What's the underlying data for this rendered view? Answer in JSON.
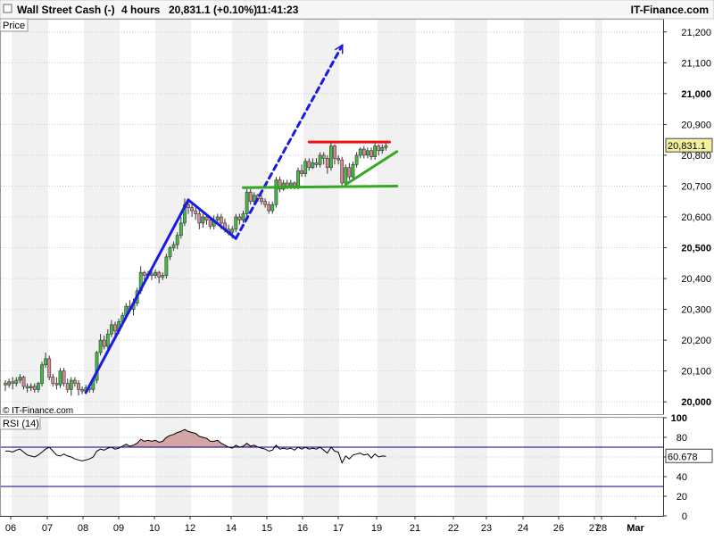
{
  "header": {
    "instrument": "Wall Street Cash (-)",
    "timeframe": "4 hours",
    "quote": "20,831.1 (+0.10%)",
    "time": "11:41:23",
    "brand": "IT-Finance.com"
  },
  "price_panel": {
    "label": "Price",
    "watermark": "© IT-Finance.com",
    "last_price_label": "20,831.1"
  },
  "rsi_panel": {
    "label": "RSI (14)",
    "last_value_label": "60.678"
  },
  "colors": {
    "up_candle": "#44bb44",
    "down_candle": "#d98a96",
    "trend_blue": "#1a1ae6",
    "support_green": "#33aa22",
    "resistance_red": "#ee1111",
    "rsi_line": "#000000",
    "rsi_fill": "#d4a5a5",
    "level_line": "#000080"
  },
  "chart_data": [
    {
      "type": "candlestick",
      "title": "Wall Street Cash (-)",
      "ylabel": "Price",
      "x_tick_labels": [
        "06",
        "07",
        "08",
        "09",
        "10",
        "12",
        "14",
        "15",
        "16",
        "17",
        "19",
        "21",
        "22",
        "23",
        "24",
        "26",
        "27",
        "28",
        "Mar"
      ],
      "y_ticks": [
        20000,
        20100,
        20200,
        20300,
        20400,
        20500,
        20600,
        20700,
        20800,
        20900,
        21000,
        21100,
        21200
      ],
      "ylim": [
        19960,
        21240
      ],
      "last_price": 20831.1,
      "candles": [
        [
          20060,
          20055,
          20035,
          20070
        ],
        [
          20055,
          20065,
          20045,
          20075
        ],
        [
          20065,
          20060,
          20040,
          20080
        ],
        [
          20060,
          20070,
          20050,
          20080
        ],
        [
          20070,
          20080,
          20060,
          20090
        ],
        [
          20080,
          20050,
          20040,
          20085
        ],
        [
          20050,
          20045,
          20030,
          20060
        ],
        [
          20045,
          20050,
          20035,
          20060
        ],
        [
          20050,
          20040,
          20030,
          20060
        ],
        [
          20040,
          20060,
          20030,
          20065
        ],
        [
          20060,
          20120,
          20050,
          20130
        ],
        [
          20120,
          20140,
          20110,
          20160
        ],
        [
          20140,
          20080,
          20070,
          20150
        ],
        [
          20080,
          20060,
          20050,
          20090
        ],
        [
          20060,
          20055,
          20040,
          20080
        ],
        [
          20055,
          20100,
          20045,
          20110
        ],
        [
          20100,
          20060,
          20050,
          20110
        ],
        [
          20060,
          20040,
          20030,
          20075
        ],
        [
          20040,
          20070,
          20020,
          20080
        ],
        [
          20070,
          20060,
          20050,
          20080
        ],
        [
          20060,
          20040,
          20020,
          20070
        ],
        [
          20040,
          20035,
          20025,
          20050
        ],
        [
          20035,
          20045,
          20025,
          20055
        ],
        [
          20045,
          20040,
          20030,
          20055
        ],
        [
          20040,
          20070,
          20030,
          20080
        ],
        [
          20070,
          20160,
          20060,
          20165
        ],
        [
          20160,
          20200,
          20150,
          20220
        ],
        [
          20200,
          20180,
          20170,
          20215
        ],
        [
          20180,
          20220,
          20170,
          20235
        ],
        [
          20220,
          20250,
          20210,
          20265
        ],
        [
          20250,
          20230,
          20200,
          20260
        ],
        [
          20230,
          20260,
          20220,
          20270
        ],
        [
          20260,
          20280,
          20250,
          20290
        ],
        [
          20280,
          20310,
          20270,
          20320
        ],
        [
          20310,
          20300,
          20290,
          20330
        ],
        [
          20300,
          20320,
          20280,
          20335
        ],
        [
          20320,
          20360,
          20310,
          20370
        ],
        [
          20360,
          20420,
          20350,
          20440
        ],
        [
          20420,
          20410,
          20390,
          20425
        ],
        [
          20410,
          20415,
          20400,
          20425
        ],
        [
          20415,
          20410,
          20395,
          20425
        ],
        [
          20410,
          20420,
          20400,
          20430
        ],
        [
          20420,
          20405,
          20385,
          20425
        ],
        [
          20405,
          20410,
          20395,
          20420
        ],
        [
          20410,
          20470,
          20400,
          20480
        ],
        [
          20470,
          20500,
          20460,
          20505
        ],
        [
          20500,
          20510,
          20490,
          20520
        ],
        [
          20510,
          20540,
          20495,
          20550
        ],
        [
          20540,
          20580,
          20530,
          20600
        ],
        [
          20580,
          20640,
          20570,
          20660
        ],
        [
          20640,
          20630,
          20610,
          20650
        ],
        [
          20630,
          20620,
          20600,
          20640
        ],
        [
          20620,
          20610,
          20590,
          20635
        ],
        [
          20610,
          20580,
          20560,
          20630
        ],
        [
          20580,
          20600,
          20565,
          20610
        ],
        [
          20600,
          20590,
          20575,
          20610
        ],
        [
          20590,
          20570,
          20560,
          20600
        ],
        [
          20570,
          20590,
          20560,
          20605
        ],
        [
          20590,
          20600,
          20580,
          20610
        ],
        [
          20600,
          20580,
          20560,
          20610
        ],
        [
          20580,
          20560,
          20550,
          20595
        ],
        [
          20560,
          20550,
          20540,
          20575
        ],
        [
          20550,
          20560,
          20530,
          20570
        ],
        [
          20560,
          20600,
          20550,
          20610
        ],
        [
          20600,
          20590,
          20575,
          20610
        ],
        [
          20590,
          20610,
          20580,
          20620
        ],
        [
          20610,
          20680,
          20600,
          20690
        ],
        [
          20680,
          20650,
          20640,
          20690
        ],
        [
          20650,
          20670,
          20640,
          20680
        ],
        [
          20670,
          20660,
          20650,
          20675
        ],
        [
          20660,
          20650,
          20640,
          20670
        ],
        [
          20650,
          20640,
          20630,
          20660
        ],
        [
          20640,
          20620,
          20610,
          20650
        ],
        [
          20620,
          20640,
          20610,
          20650
        ],
        [
          20640,
          20720,
          20630,
          20730
        ],
        [
          20720,
          20690,
          20680,
          20730
        ],
        [
          20690,
          20710,
          20685,
          20720
        ],
        [
          20710,
          20700,
          20690,
          20720
        ],
        [
          20700,
          20710,
          20690,
          20720
        ],
        [
          20710,
          20700,
          20690,
          20715
        ],
        [
          20700,
          20750,
          20690,
          20760
        ],
        [
          20750,
          20740,
          20730,
          20770
        ],
        [
          20740,
          20780,
          20730,
          20790
        ],
        [
          20780,
          20760,
          20750,
          20790
        ],
        [
          20760,
          20775,
          20755,
          20790
        ],
        [
          20775,
          20770,
          20760,
          20790
        ],
        [
          20770,
          20800,
          20760,
          20810
        ],
        [
          20800,
          20790,
          20770,
          20810
        ],
        [
          20790,
          20760,
          20740,
          20800
        ],
        [
          20760,
          20830,
          20750,
          20840
        ],
        [
          20830,
          20790,
          20770,
          20835
        ],
        [
          20790,
          20785,
          20770,
          20800
        ],
        [
          20785,
          20710,
          20700,
          20795
        ],
        [
          20710,
          20760,
          20700,
          20770
        ],
        [
          20760,
          20730,
          20720,
          20775
        ],
        [
          20730,
          20770,
          20720,
          20780
        ],
        [
          20770,
          20800,
          20760,
          20810
        ],
        [
          20800,
          20820,
          20790,
          20825
        ],
        [
          20820,
          20800,
          20790,
          20830
        ],
        [
          20800,
          20815,
          20790,
          20825
        ],
        [
          20815,
          20795,
          20785,
          20825
        ],
        [
          20795,
          20830,
          20785,
          20840
        ],
        [
          20830,
          20815,
          20800,
          20835
        ],
        [
          20815,
          20825,
          20805,
          20835
        ],
        [
          20825,
          20831.1,
          20815,
          20840
        ]
      ],
      "annotations": [
        {
          "kind": "line",
          "color": "blue",
          "style": "solid",
          "from": [
            22,
            20030
          ],
          "to": [
            50,
            20655
          ]
        },
        {
          "kind": "line",
          "color": "blue",
          "style": "solid",
          "from": [
            50,
            20655
          ],
          "to": [
            63,
            20530
          ]
        },
        {
          "kind": "line",
          "color": "blue",
          "style": "dashed-arrow",
          "from": [
            63,
            20530
          ],
          "to": [
            92,
            21155
          ]
        },
        {
          "kind": "line",
          "color": "green",
          "style": "solid",
          "from": [
            65,
            20695
          ],
          "to": [
            107,
            20700
          ]
        },
        {
          "kind": "line",
          "color": "green",
          "style": "solid",
          "from": [
            93,
            20705
          ],
          "to": [
            107,
            20812
          ]
        },
        {
          "kind": "line",
          "color": "red",
          "style": "solid",
          "from": [
            83,
            20843
          ],
          "to": [
            105,
            20843
          ]
        }
      ]
    },
    {
      "type": "line",
      "title": "RSI (14)",
      "y_ticks": [
        0,
        20,
        40,
        60,
        80,
        100
      ],
      "ylim": [
        0,
        100
      ],
      "levels": [
        70,
        30
      ],
      "last_value": 60.678,
      "values": [
        66,
        66,
        65,
        67,
        68,
        65,
        62,
        61,
        60,
        62,
        65,
        68,
        70,
        66,
        62,
        61,
        63,
        61,
        60,
        58,
        57,
        56,
        57,
        58,
        60,
        66,
        68,
        67,
        69,
        70,
        68,
        69,
        71,
        73,
        71,
        72,
        74,
        78,
        76,
        77,
        76,
        77,
        75,
        76,
        80,
        82,
        83,
        85,
        86,
        88,
        86,
        85,
        84,
        81,
        80,
        79,
        76,
        76,
        77,
        74,
        72,
        70,
        69,
        72,
        70,
        71,
        74,
        71,
        72,
        70,
        69,
        68,
        66,
        67,
        72,
        68,
        69,
        68,
        69,
        67,
        70,
        68,
        70,
        68,
        69,
        68,
        70,
        67,
        64,
        70,
        66,
        65,
        54,
        61,
        58,
        62,
        63,
        64,
        62,
        63,
        59,
        63,
        60,
        61,
        60.678
      ]
    }
  ]
}
